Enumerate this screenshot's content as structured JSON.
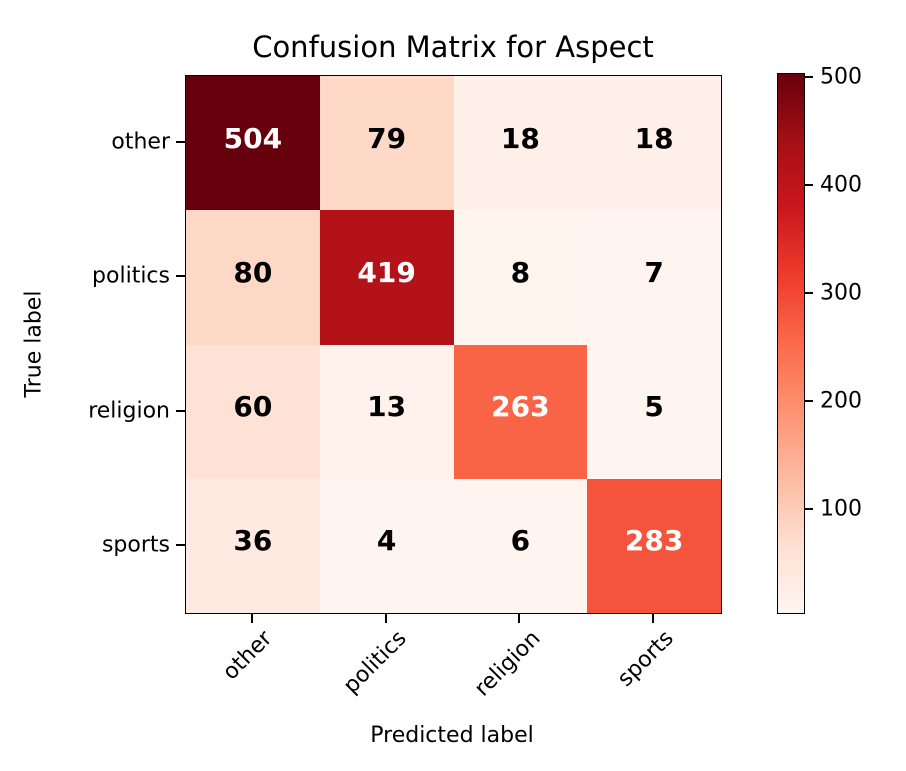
{
  "chart_data": {
    "type": "heatmap",
    "title": "Confusion Matrix for Aspect",
    "xlabel": "Predicted label",
    "ylabel": "True label",
    "x_categories": [
      "other",
      "politics",
      "religion",
      "sports"
    ],
    "y_categories": [
      "other",
      "politics",
      "religion",
      "sports"
    ],
    "matrix": [
      [
        504,
        79,
        18,
        18
      ],
      [
        80,
        419,
        8,
        7
      ],
      [
        60,
        13,
        263,
        5
      ],
      [
        36,
        4,
        6,
        283
      ]
    ],
    "vmin": 4,
    "vmax": 504,
    "colormap": {
      "name": "Reds",
      "stops": [
        "#fff5f0",
        "#fee0d2",
        "#fcbba1",
        "#fc9272",
        "#fb6a4a",
        "#ef3b2c",
        "#cb181d",
        "#a50f15",
        "#67000d"
      ]
    },
    "colorbar_ticks": [
      100,
      200,
      300,
      400,
      500
    ],
    "annotation_colors": {
      "above_threshold": "#ffffff",
      "below_threshold": "#000000"
    },
    "xtick_rotation_deg": 45,
    "grid": false,
    "legend": "colorbar-right",
    "colors": {
      "spine": "#000000",
      "background": "#ffffff"
    }
  }
}
